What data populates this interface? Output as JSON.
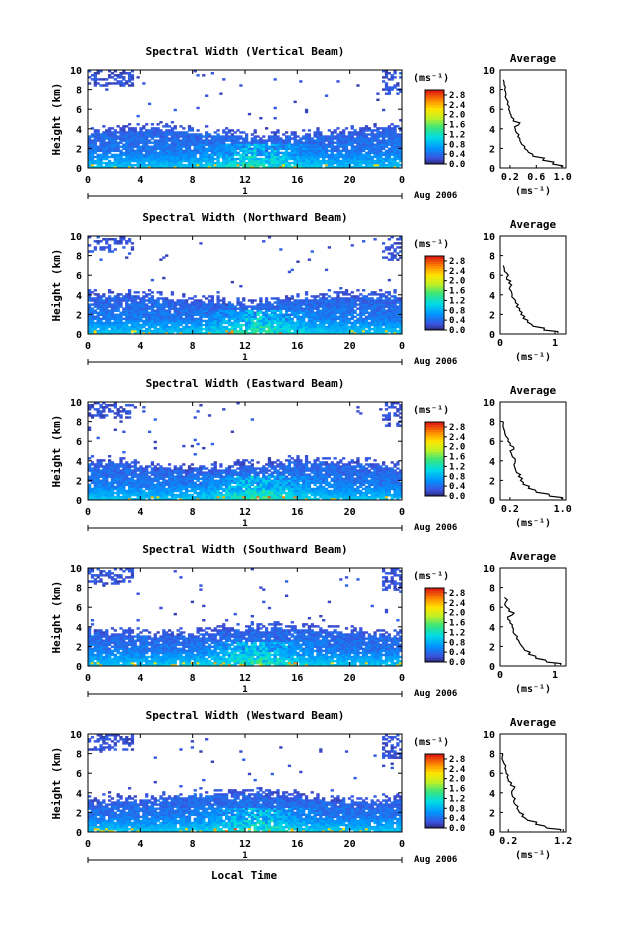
{
  "figure": {
    "xlabel": "Local Time",
    "date_label": "Aug 2006",
    "day_label": "1",
    "colorbar_unit": "(ms⁻¹)",
    "profile_title": "Average",
    "profile_xlabel": "(ms⁻¹)",
    "ylabel": "Height (km)"
  },
  "chart_data": [
    {
      "type": "heatmap",
      "title": "Spectral Width (Vertical Beam)",
      "ylabel": "Height (km)",
      "xlabel": "",
      "xlim": [
        0,
        24
      ],
      "ylim": [
        0,
        10
      ],
      "xticks": [
        "0",
        "4",
        "8",
        "12",
        "16",
        "20",
        "0"
      ],
      "yticks": [
        "0",
        "2",
        "4",
        "6",
        "8",
        "10"
      ],
      "colorbar": {
        "label": "(ms⁻¹)",
        "ticks": [
          "0.0",
          "0.4",
          "0.8",
          "1.2",
          "1.6",
          "2.0",
          "2.4",
          "2.8"
        ],
        "range": [
          0,
          3
        ]
      },
      "profile": {
        "title": "Average",
        "xlabel": "(ms⁻¹)",
        "xticks": [
          "0.2",
          "0.6",
          "1.0"
        ],
        "xlim": [
          0.05,
          1.05
        ],
        "points": [
          [
            0.98,
            0.1
          ],
          [
            0.85,
            0.4
          ],
          [
            0.7,
            0.8
          ],
          [
            0.55,
            1.2
          ],
          [
            0.48,
            1.6
          ],
          [
            0.42,
            2.0
          ],
          [
            0.38,
            2.4
          ],
          [
            0.35,
            2.8
          ],
          [
            0.32,
            3.2
          ],
          [
            0.3,
            3.6
          ],
          [
            0.28,
            4.0
          ],
          [
            0.33,
            4.4
          ],
          [
            0.25,
            4.8
          ],
          [
            0.22,
            5.2
          ],
          [
            0.2,
            5.6
          ],
          [
            0.18,
            6.0
          ],
          [
            0.16,
            6.5
          ],
          [
            0.15,
            7.0
          ],
          [
            0.14,
            7.5
          ],
          [
            0.12,
            8.0
          ],
          [
            0.11,
            8.5
          ],
          [
            0.1,
            9.0
          ]
        ]
      }
    },
    {
      "type": "heatmap",
      "title": "Spectral Width (Northward Beam)",
      "ylabel": "Height (km)",
      "xlabel": "",
      "xlim": [
        0,
        24
      ],
      "ylim": [
        0,
        10
      ],
      "xticks": [
        "0",
        "4",
        "8",
        "12",
        "16",
        "20",
        "0"
      ],
      "yticks": [
        "0",
        "2",
        "4",
        "6",
        "8",
        "10"
      ],
      "colorbar": {
        "label": "(ms⁻¹)",
        "ticks": [
          "0.0",
          "0.4",
          "0.8",
          "1.2",
          "1.6",
          "2.0",
          "2.4",
          "2.8"
        ],
        "range": [
          0,
          3
        ]
      },
      "profile": {
        "title": "Average",
        "xlabel": "(ms⁻¹)",
        "xticks": [
          "0",
          "1"
        ],
        "xlim": [
          0,
          1.2
        ],
        "points": [
          [
            1.05,
            0.1
          ],
          [
            0.8,
            0.4
          ],
          [
            0.6,
            0.8
          ],
          [
            0.5,
            1.2
          ],
          [
            0.42,
            1.6
          ],
          [
            0.38,
            2.0
          ],
          [
            0.35,
            2.4
          ],
          [
            0.3,
            2.8
          ],
          [
            0.28,
            3.2
          ],
          [
            0.25,
            3.6
          ],
          [
            0.22,
            4.0
          ],
          [
            0.2,
            4.4
          ],
          [
            0.18,
            4.8
          ],
          [
            0.16,
            5.2
          ],
          [
            0.12,
            5.6
          ],
          [
            0.15,
            6.0
          ],
          [
            0.08,
            6.4
          ],
          [
            0.06,
            7.0
          ]
        ]
      }
    },
    {
      "type": "heatmap",
      "title": "Spectral Width (Eastward Beam)",
      "ylabel": "Height (km)",
      "xlabel": "",
      "xlim": [
        0,
        24
      ],
      "ylim": [
        0,
        10
      ],
      "xticks": [
        "0",
        "4",
        "8",
        "12",
        "16",
        "20",
        "0"
      ],
      "yticks": [
        "0",
        "2",
        "4",
        "6",
        "8",
        "10"
      ],
      "colorbar": {
        "label": "(ms⁻¹)",
        "ticks": [
          "0.0",
          "0.4",
          "0.8",
          "1.2",
          "1.6",
          "2.0",
          "2.4",
          "2.8"
        ],
        "range": [
          0,
          3
        ]
      },
      "profile": {
        "title": "Average",
        "xlabel": "(ms⁻¹)",
        "xticks": [
          "0.2",
          "1.0"
        ],
        "xlim": [
          0.05,
          1.05
        ],
        "points": [
          [
            0.98,
            0.1
          ],
          [
            0.8,
            0.4
          ],
          [
            0.6,
            0.8
          ],
          [
            0.48,
            1.2
          ],
          [
            0.4,
            1.6
          ],
          [
            0.36,
            2.0
          ],
          [
            0.33,
            2.4
          ],
          [
            0.3,
            2.8
          ],
          [
            0.28,
            3.2
          ],
          [
            0.26,
            3.6
          ],
          [
            0.28,
            4.0
          ],
          [
            0.24,
            4.4
          ],
          [
            0.22,
            4.8
          ],
          [
            0.26,
            5.2
          ],
          [
            0.2,
            5.6
          ],
          [
            0.17,
            6.0
          ],
          [
            0.14,
            6.5
          ],
          [
            0.12,
            7.0
          ],
          [
            0.1,
            8.0
          ]
        ]
      }
    },
    {
      "type": "heatmap",
      "title": "Spectral Width (Southward Beam)",
      "ylabel": "Height (km)",
      "xlabel": "",
      "xlim": [
        0,
        24
      ],
      "ylim": [
        0,
        10
      ],
      "xticks": [
        "0",
        "4",
        "8",
        "12",
        "16",
        "20",
        "0"
      ],
      "yticks": [
        "0",
        "2",
        "4",
        "6",
        "8",
        "10"
      ],
      "colorbar": {
        "label": "(ms⁻¹)",
        "ticks": [
          "0.0",
          "0.4",
          "0.8",
          "1.2",
          "1.6",
          "2.0",
          "2.4",
          "2.8"
        ],
        "range": [
          0,
          3
        ]
      },
      "profile": {
        "title": "Average",
        "xlabel": "(ms⁻¹)",
        "xticks": [
          "0",
          "1"
        ],
        "xlim": [
          0,
          1.2
        ],
        "points": [
          [
            1.1,
            0.1
          ],
          [
            0.85,
            0.4
          ],
          [
            0.65,
            0.8
          ],
          [
            0.52,
            1.2
          ],
          [
            0.45,
            1.6
          ],
          [
            0.4,
            2.0
          ],
          [
            0.35,
            2.4
          ],
          [
            0.3,
            2.8
          ],
          [
            0.27,
            3.2
          ],
          [
            0.24,
            3.6
          ],
          [
            0.22,
            4.0
          ],
          [
            0.18,
            4.4
          ],
          [
            0.14,
            4.8
          ],
          [
            0.22,
            5.2
          ],
          [
            0.16,
            5.6
          ],
          [
            0.12,
            6.0
          ],
          [
            0.1,
            6.5
          ],
          [
            0.08,
            7.0
          ]
        ]
      }
    },
    {
      "type": "heatmap",
      "title": "Spectral Width (Westward Beam)",
      "ylabel": "Height (km)",
      "xlabel": "Local Time",
      "xlim": [
        0,
        24
      ],
      "ylim": [
        0,
        10
      ],
      "xticks": [
        "0",
        "4",
        "8",
        "12",
        "16",
        "20",
        "0"
      ],
      "yticks": [
        "0",
        "2",
        "4",
        "6",
        "8",
        "10"
      ],
      "colorbar": {
        "label": "(ms⁻¹)",
        "ticks": [
          "0.0",
          "0.4",
          "0.8",
          "1.2",
          "1.6",
          "2.0",
          "2.4",
          "2.8"
        ],
        "range": [
          0,
          3
        ]
      },
      "profile": {
        "title": "Average",
        "xlabel": "(ms⁻¹)",
        "xticks": [
          "0.2",
          "1.2"
        ],
        "xlim": [
          0.05,
          1.25
        ],
        "points": [
          [
            1.15,
            0.1
          ],
          [
            0.9,
            0.4
          ],
          [
            0.7,
            0.8
          ],
          [
            0.55,
            1.2
          ],
          [
            0.45,
            1.6
          ],
          [
            0.4,
            2.0
          ],
          [
            0.36,
            2.4
          ],
          [
            0.33,
            2.8
          ],
          [
            0.3,
            3.2
          ],
          [
            0.28,
            3.6
          ],
          [
            0.26,
            4.0
          ],
          [
            0.3,
            4.4
          ],
          [
            0.24,
            4.8
          ],
          [
            0.2,
            5.2
          ],
          [
            0.18,
            5.6
          ],
          [
            0.16,
            6.0
          ],
          [
            0.14,
            6.5
          ],
          [
            0.12,
            7.0
          ],
          [
            0.1,
            8.0
          ]
        ]
      }
    }
  ]
}
